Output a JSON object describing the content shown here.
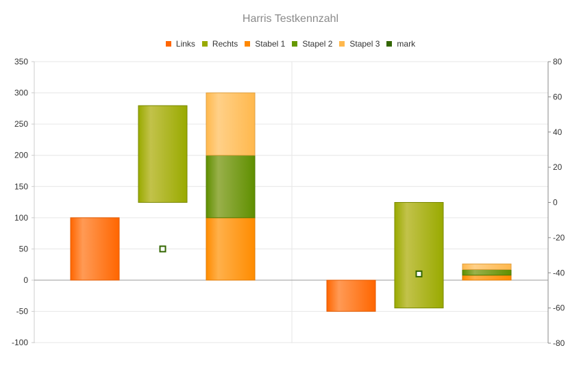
{
  "chart_data": {
    "type": "bar",
    "title": "Harris Testkennzahl",
    "categories": [
      "",
      ""
    ],
    "legend": [
      {
        "name": "Links",
        "color": "#ff6600"
      },
      {
        "name": "Rechts",
        "color": "#99aa00"
      },
      {
        "name": "Stabel 1",
        "color": "#ff8800"
      },
      {
        "name": "Stapel 2",
        "color": "#669900"
      },
      {
        "name": "Stapel 3",
        "color": "#ffb84d"
      },
      {
        "name": "mark",
        "color": "#336600"
      }
    ],
    "left_axis": {
      "min": -100,
      "max": 350,
      "ticks": [
        350,
        300,
        250,
        200,
        150,
        100,
        50,
        0,
        -50,
        -100
      ]
    },
    "right_axis": {
      "min": -80,
      "max": 80,
      "ticks": [
        80,
        60,
        40,
        20,
        0,
        -20,
        -40,
        -60,
        -80
      ]
    },
    "series": [
      {
        "name": "Links",
        "axis": "left",
        "values": [
          100,
          -50
        ]
      },
      {
        "name": "Rechts",
        "axis": "right",
        "floating": true,
        "values": [
          [
            0,
            55
          ],
          [
            -60,
            0
          ]
        ]
      },
      {
        "name": "Stabel 1",
        "axis": "left",
        "stack": true,
        "values": [
          100,
          8
        ]
      },
      {
        "name": "Stapel 2",
        "axis": "left",
        "stack": true,
        "values": [
          100,
          9
        ]
      },
      {
        "name": "Stapel 3",
        "axis": "left",
        "stack": true,
        "values": [
          100,
          9
        ]
      },
      {
        "name": "mark",
        "axis": "left",
        "marker": true,
        "values": [
          50,
          10
        ]
      }
    ],
    "grid": true,
    "legend_position": "top"
  }
}
